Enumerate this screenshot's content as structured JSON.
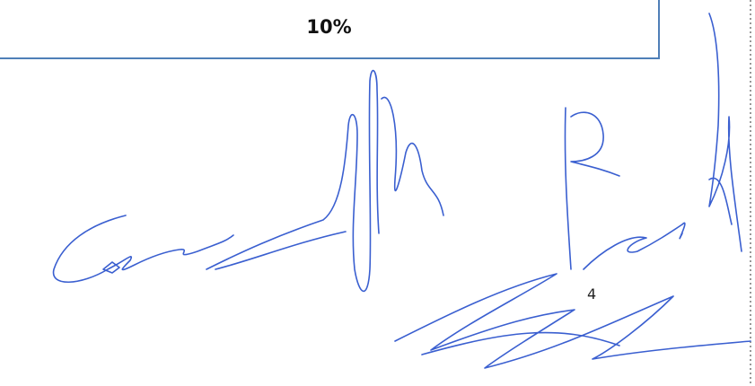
{
  "table": {
    "cell": "10%"
  },
  "page_number": "4"
}
